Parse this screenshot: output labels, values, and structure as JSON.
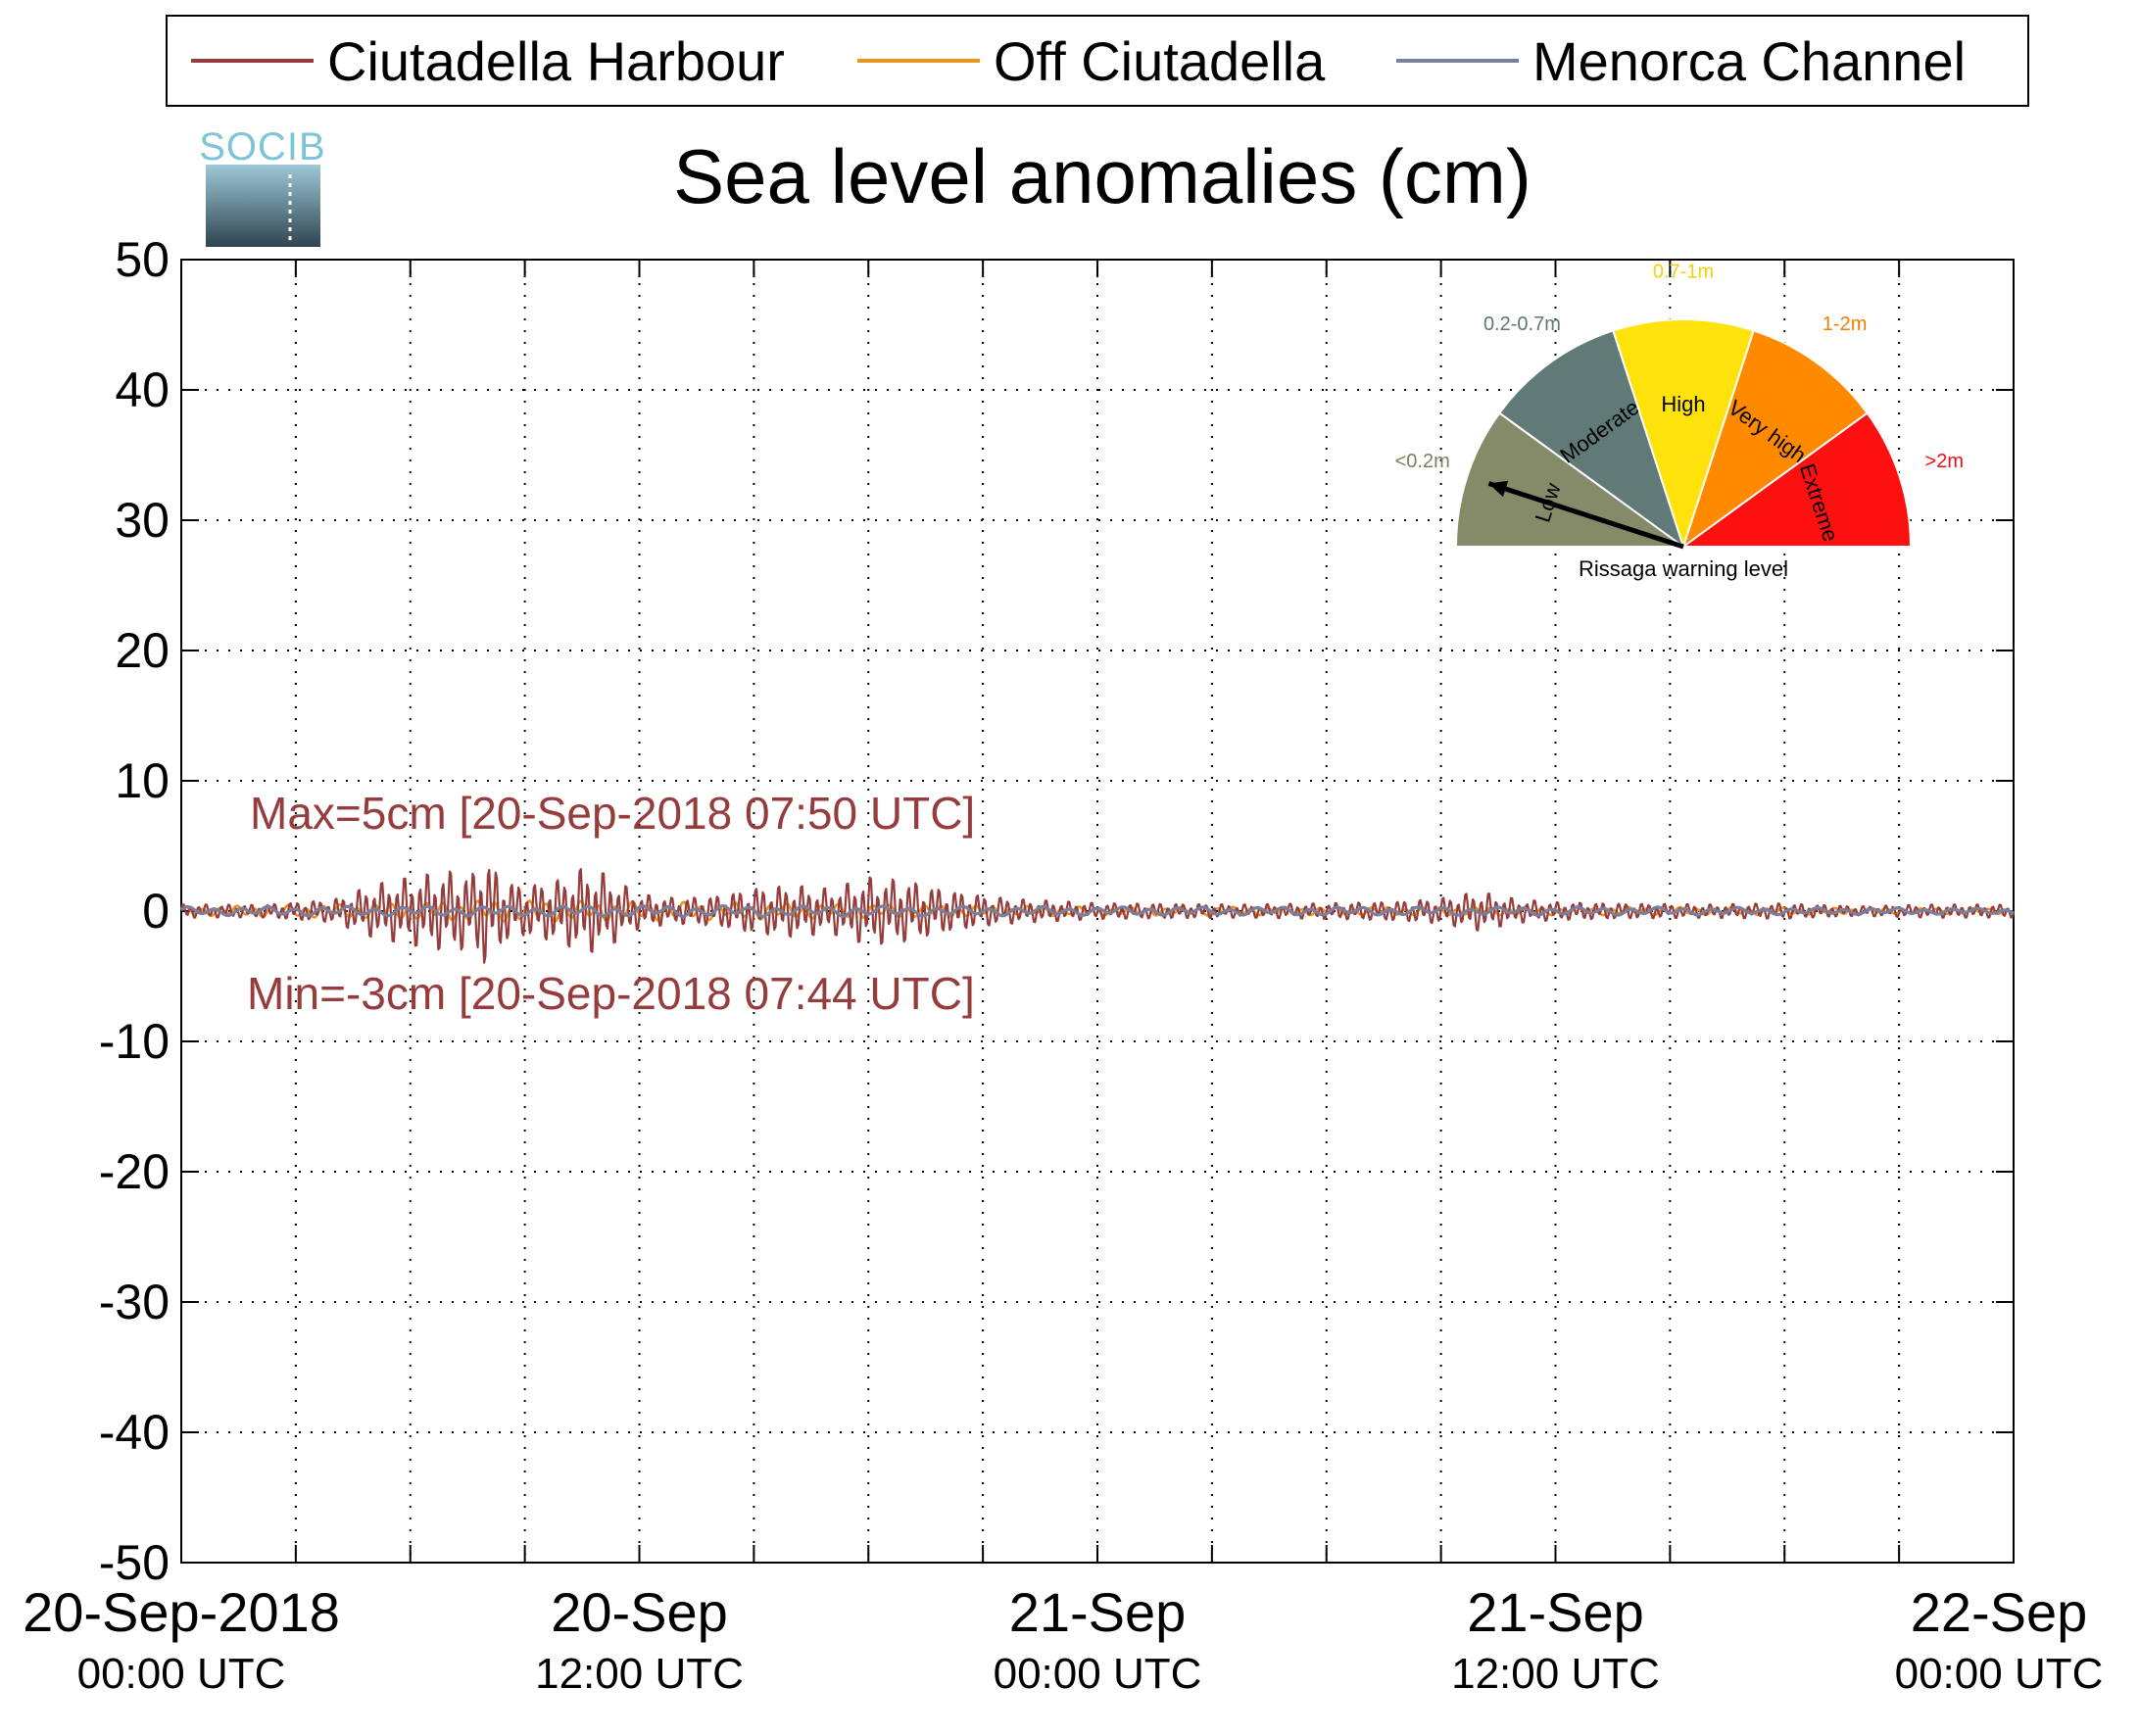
{
  "chart_data": {
    "type": "line",
    "title": "Sea level anomalies (cm)",
    "logo_text": "SOCIB",
    "xlabel": "",
    "ylabel": "",
    "x_range": [
      "2018-09-20 00:00",
      "2018-09-22 00:00"
    ],
    "ylim": [
      -50,
      50
    ],
    "y_ticks": [
      50,
      40,
      30,
      20,
      10,
      0,
      -10,
      -20,
      -30,
      -40,
      -50
    ],
    "x_ticks": [
      {
        "date": "2018-09-20 00:00",
        "line1": "20-Sep-2018",
        "line2": "00:00 UTC"
      },
      {
        "date": "2018-09-20 12:00",
        "line1": "20-Sep",
        "line2": "12:00 UTC"
      },
      {
        "date": "2018-09-21 00:00",
        "line1": "21-Sep",
        "line2": "00:00 UTC"
      },
      {
        "date": "2018-09-21 12:00",
        "line1": "21-Sep",
        "line2": "12:00 UTC"
      },
      {
        "date": "2018-09-22 00:00",
        "line1": "22-Sep",
        "line2": "00:00 UTC"
      }
    ],
    "grid": true,
    "legend_position": "top",
    "series": [
      {
        "name": "Ciutadella Harbour",
        "color": "#963c3c",
        "x": [
          "2018-09-20 00:00",
          "2018-09-20 02:00",
          "2018-09-20 03:00",
          "2018-09-20 04:00",
          "2018-09-20 05:00",
          "2018-09-20 06:00",
          "2018-09-20 07:00",
          "2018-09-20 07:44",
          "2018-09-20 07:50",
          "2018-09-20 08:30",
          "2018-09-20 09:00",
          "2018-09-20 10:00",
          "2018-09-20 10:30",
          "2018-09-20 11:00",
          "2018-09-20 12:00",
          "2018-09-20 13:00",
          "2018-09-20 14:00",
          "2018-09-20 15:00",
          "2018-09-20 16:00",
          "2018-09-20 17:00",
          "2018-09-20 18:00",
          "2018-09-20 19:00",
          "2018-09-20 20:00",
          "2018-09-20 21:00",
          "2018-09-20 22:00",
          "2018-09-21 00:00",
          "2018-09-21 02:00",
          "2018-09-21 04:00",
          "2018-09-21 06:00",
          "2018-09-21 08:00",
          "2018-09-21 09:00",
          "2018-09-21 10:00",
          "2018-09-21 11:00",
          "2018-09-21 12:00",
          "2018-09-21 14:00",
          "2018-09-21 16:00",
          "2018-09-21 18:00",
          "2018-09-21 20:00",
          "2018-09-21 22:00",
          "2018-09-22 00:00"
        ],
        "amplitude_cm": [
          0.5,
          0.5,
          0.7,
          0.9,
          2.0,
          2.6,
          3.1,
          3.0,
          4.6,
          2.4,
          2.0,
          2.5,
          3.3,
          3.0,
          1.3,
          1.0,
          1.2,
          1.8,
          2.0,
          1.7,
          2.6,
          2.4,
          1.7,
          1.2,
          0.9,
          0.6,
          0.6,
          0.5,
          0.6,
          0.8,
          1.0,
          1.5,
          0.9,
          0.7,
          0.6,
          0.5,
          0.6,
          0.4,
          0.5,
          0.5
        ]
      },
      {
        "name": "Off Ciutadella",
        "color": "#e8961e",
        "x": [
          "2018-09-20 00:00",
          "2018-09-20 06:00",
          "2018-09-20 08:00",
          "2018-09-20 11:00",
          "2018-09-20 18:00",
          "2018-09-21 00:00",
          "2018-09-21 12:00",
          "2018-09-22 00:00"
        ],
        "amplitude_cm": [
          0.3,
          0.6,
          0.8,
          0.7,
          0.5,
          0.3,
          0.3,
          0.2
        ]
      },
      {
        "name": "Menorca Channel",
        "color": "#7a7f9e",
        "x": [
          "2018-09-20 00:00",
          "2018-09-20 12:00",
          "2018-09-21 00:00",
          "2018-09-21 12:00",
          "2018-09-22 00:00"
        ],
        "amplitude_cm": [
          0.3,
          0.4,
          0.3,
          0.3,
          0.2
        ]
      }
    ],
    "annotations": {
      "max": "Max=5cm [20-Sep-2018 07:50 UTC]",
      "min": "Min=-3cm [20-Sep-2018 07:44 UTC]",
      "color": "#963c3c"
    },
    "gauge": {
      "title": "Rissaga warning level",
      "needle_level": "Low",
      "needle_angle_deg": 162,
      "sectors": [
        {
          "label": "Low",
          "range": "<0.2m",
          "color": "#858a69",
          "range_color": "#7b805d"
        },
        {
          "label": "Moderate",
          "range": "0.2-0.7m",
          "color": "#607a78",
          "range_color": "#5f7676"
        },
        {
          "label": "High",
          "range": "0.7-1m",
          "color": "#ffe20a",
          "range_color": "#f0d20a"
        },
        {
          "label": "Very high",
          "range": "1-2m",
          "color": "#ff8a00",
          "range_color": "#f08000"
        },
        {
          "label": "Extreme",
          "range": ">2m",
          "color": "#ff1010",
          "range_color": "#ee1010"
        }
      ]
    }
  }
}
